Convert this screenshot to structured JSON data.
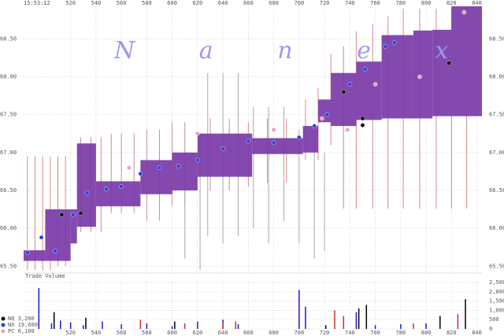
{
  "chart_data": [
    {
      "type": "price",
      "time_label": "15:53:12",
      "watermark": "N a n e x",
      "xlim": [
        483,
        844
      ],
      "xticks": [
        520,
        540,
        560,
        580,
        600,
        620,
        640,
        660,
        680,
        700,
        720,
        740,
        760,
        780,
        800,
        820,
        840
      ],
      "ylim": [
        65.43,
        68.93
      ],
      "yticks": [
        {
          "value": 65.5,
          "label": "65.50"
        },
        {
          "value": 66,
          "label": "66.00"
        },
        {
          "value": 66.5,
          "label": "66.50"
        },
        {
          "value": 67,
          "label": "67.00"
        },
        {
          "value": 67.5,
          "label": "67.50"
        },
        {
          "value": 68,
          "label": "68.00"
        },
        {
          "value": 68.5,
          "label": "68.50"
        }
      ],
      "grid": true,
      "nbbo": {
        "color": "#7a3aa8",
        "x": [
          483,
          500,
          520,
          525,
          540,
          575,
          600,
          620,
          663,
          703,
          715,
          725,
          745,
          765,
          790,
          805,
          820
        ],
        "low": [
          65.57,
          65.57,
          65.8,
          66.02,
          66.29,
          66.45,
          66.5,
          66.68,
          66.98,
          67.0,
          67.4,
          67.35,
          67.43,
          67.45,
          67.45,
          67.48,
          67.48
        ],
        "high": [
          65.71,
          66.25,
          66.25,
          67.12,
          66.62,
          66.9,
          67.0,
          67.25,
          67.19,
          67.35,
          67.7,
          68.05,
          68.2,
          68.55,
          68.61,
          68.62,
          68.93
        ]
      },
      "quote_lines": [
        {
          "color": "#d48a8a",
          "x": [
            486,
            492,
            498,
            504,
            510,
            516,
            528,
            536,
            544,
            552,
            560,
            570,
            580,
            590,
            600,
            610,
            630,
            645,
            660,
            675,
            690,
            705,
            715,
            725,
            735,
            745,
            758,
            770,
            782,
            795,
            808,
            820,
            832
          ],
          "low": [
            65.45,
            65.45,
            65.45,
            65.45,
            65.5,
            65.5,
            65.95,
            65.95,
            65.95,
            66.2,
            66.2,
            66.2,
            66.1,
            66.1,
            66.3,
            66.3,
            66.5,
            66.5,
            66.55,
            66.6,
            66.6,
            66.9,
            66.9,
            67.1,
            66.26,
            66.26,
            66.26,
            66.26,
            66.26,
            66.26,
            66.26,
            66.26,
            66.26
          ],
          "high": [
            66.95,
            66.95,
            66.95,
            66.95,
            66.95,
            66.95,
            67.2,
            67.2,
            67.2,
            67.25,
            67.25,
            67.25,
            67.3,
            67.3,
            67.4,
            67.4,
            67.45,
            67.45,
            67.4,
            67.45,
            67.45,
            67.7,
            67.85,
            68.3,
            68.4,
            68.6,
            68.7,
            68.8,
            68.9,
            68.9,
            68.9,
            68.9,
            68.9
          ]
        },
        {
          "color": "#a8a8a8",
          "x": [
            610,
            622,
            628,
            640,
            652,
            664,
            676,
            688,
            700,
            712,
            720
          ],
          "low": [
            65.6,
            65.45,
            65.9,
            65.8,
            65.9,
            66.0,
            65.8,
            66.1,
            65.8,
            65.6,
            65.7
          ],
          "high": [
            66.8,
            67.25,
            68.05,
            68.05,
            68.05,
            67.6,
            67.6,
            67.6,
            67.3,
            67.3,
            67.0
          ]
        }
      ],
      "series": [
        {
          "name": "NQ 3,200",
          "color": "#000000",
          "x": [
            513,
            528,
            735,
            750,
            750,
            818
          ],
          "values": [
            66.18,
            66.2,
            67.8,
            67.45,
            67.36,
            68.18
          ]
        },
        {
          "name": "NX 19,600",
          "color": "#2f3fe0",
          "x": [
            486,
            497,
            508,
            522,
            533,
            548,
            560,
            575,
            590,
            605,
            620,
            640,
            660,
            680,
            700,
            712,
            722,
            740,
            752,
            768,
            775
          ],
          "values": [
            65.68,
            65.88,
            65.7,
            66.18,
            66.47,
            66.52,
            66.55,
            66.72,
            66.8,
            66.82,
            66.9,
            67.05,
            67.15,
            67.13,
            67.2,
            67.35,
            67.5,
            67.9,
            68.1,
            68.4,
            68.45
          ]
        },
        {
          "name": "PC 6,100",
          "color": "#f0a0c0",
          "x": [
            566,
            620,
            680,
            718,
            738,
            760,
            795,
            830
          ],
          "values": [
            66.8,
            67.25,
            67.3,
            67.45,
            67.3,
            67.9,
            68.0,
            68.85
          ]
        }
      ]
    },
    {
      "type": "bar",
      "title": "Trade Volume",
      "xlim": [
        483,
        844
      ],
      "xticks": [
        520,
        540,
        560,
        580,
        600,
        620,
        640,
        660,
        680,
        700,
        720,
        740,
        760,
        780,
        800,
        820,
        840
      ],
      "ylim": [
        0,
        2670
      ],
      "yticks": [
        0,
        500,
        {
          "value": 1000,
          "label": "1,000"
        },
        {
          "value": 1500,
          "label": "1,500"
        },
        {
          "value": 2000,
          "label": "2,000"
        },
        {
          "value": 2500,
          "label": "2,500"
        }
      ],
      "grid": true,
      "series": [
        {
          "color": "#1a1ad0",
          "x": [
            495,
            505,
            512,
            520,
            530,
            545,
            560,
            580,
            600,
            620,
            640,
            652,
            700,
            705,
            745,
            760,
            780,
            800
          ],
          "values": [
            2200,
            300,
            450,
            350,
            200,
            400,
            250,
            300,
            150,
            400,
            500,
            250,
            2100,
            1200,
            900,
            200,
            250,
            300
          ]
        },
        {
          "color": "#cc3333",
          "x": [
            575,
            610,
            640,
            650,
            728,
            735,
            790,
            825
          ],
          "values": [
            500,
            300,
            350,
            400,
            1000,
            700,
            300,
            800
          ]
        },
        {
          "color": "#000000",
          "x": [
            507,
            532,
            602,
            721,
            747,
            753,
            811,
            831
          ],
          "values": [
            900,
            600,
            400,
            200,
            1100,
            1300,
            700,
            1600
          ]
        }
      ]
    }
  ]
}
